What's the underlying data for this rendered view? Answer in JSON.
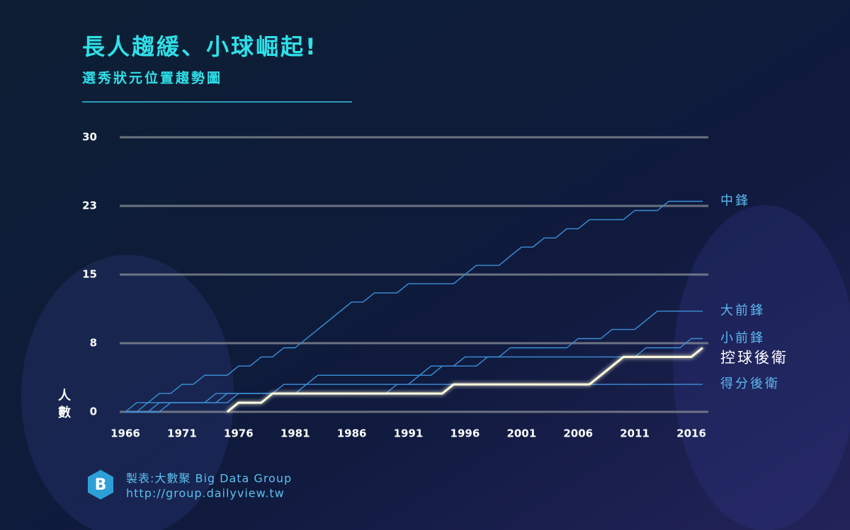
{
  "chart_data": {
    "type": "line",
    "title": "長人趨緩、小球崛起!",
    "subtitle": "選秀狀元位置趨勢圖",
    "y_label": [
      "人",
      "數"
    ],
    "x": [
      1966,
      1967,
      1968,
      1969,
      1970,
      1971,
      1972,
      1973,
      1974,
      1975,
      1976,
      1977,
      1978,
      1979,
      1980,
      1981,
      1982,
      1983,
      1984,
      1985,
      1986,
      1987,
      1988,
      1989,
      1990,
      1991,
      1992,
      1993,
      1994,
      1995,
      1996,
      1997,
      1998,
      1999,
      2000,
      2001,
      2002,
      2003,
      2004,
      2005,
      2006,
      2007,
      2008,
      2009,
      2010,
      2011,
      2012,
      2013,
      2014,
      2015,
      2016,
      2017
    ],
    "xlim": [
      1965.5,
      2017.5
    ],
    "xticks": [
      1966,
      1971,
      1976,
      1981,
      1986,
      1991,
      1996,
      2001,
      2006,
      2011,
      2016
    ],
    "ylim": [
      0,
      30
    ],
    "yticks": [
      0,
      {
        "value": 7.5,
        "label": "8"
      },
      15,
      {
        "value": 22.5,
        "label": "23"
      },
      30
    ],
    "grid": true,
    "series": [
      {
        "name": "中鋒",
        "color": "#3d8fd9",
        "values": [
          0,
          1,
          1,
          2,
          2,
          3,
          3,
          4,
          4,
          4,
          5,
          5,
          6,
          6,
          7,
          7,
          8,
          9,
          10,
          11,
          12,
          12,
          13,
          13,
          13,
          14,
          14,
          14,
          14,
          14,
          15,
          16,
          16,
          16,
          17,
          18,
          18,
          19,
          19,
          20,
          20,
          21,
          21,
          21,
          21,
          22,
          22,
          22,
          23,
          23,
          23,
          23
        ]
      },
      {
        "name": "大前鋒",
        "color": "#3d8fd9",
        "values": [
          0,
          0,
          0,
          1,
          1,
          1,
          1,
          1,
          1,
          2,
          2,
          2,
          2,
          2,
          2,
          2,
          3,
          4,
          4,
          4,
          4,
          4,
          4,
          4,
          4,
          4,
          4,
          5,
          5,
          5,
          6,
          6,
          6,
          6,
          7,
          7,
          7,
          7,
          7,
          7,
          8,
          8,
          8,
          9,
          9,
          9,
          10,
          11,
          11,
          11,
          11,
          11
        ]
      },
      {
        "name": "小前鋒",
        "color": "#3d8fd9",
        "values": [
          0,
          0,
          1,
          1,
          1,
          1,
          1,
          1,
          1,
          1,
          2,
          2,
          2,
          2,
          3,
          3,
          3,
          3,
          3,
          3,
          3,
          3,
          3,
          3,
          3,
          3,
          4,
          4,
          5,
          5,
          5,
          5,
          6,
          6,
          6,
          6,
          6,
          6,
          6,
          6,
          6,
          6,
          6,
          6,
          6,
          6,
          7,
          7,
          7,
          7,
          8,
          8
        ]
      },
      {
        "name": "控球後衛",
        "color": "#fffbe0",
        "highlight": true,
        "values": [
          null,
          null,
          null,
          null,
          null,
          null,
          null,
          null,
          null,
          0,
          1,
          1,
          1,
          2,
          2,
          2,
          2,
          2,
          2,
          2,
          2,
          2,
          2,
          2,
          2,
          2,
          2,
          2,
          2,
          3,
          3,
          3,
          3,
          3,
          3,
          3,
          3,
          3,
          3,
          3,
          3,
          3,
          4,
          5,
          6,
          6,
          6,
          6,
          6,
          6,
          6,
          7
        ]
      },
      {
        "name": "得分後衛",
        "color": "#3d8fd9",
        "values": [
          0,
          0,
          0,
          0,
          1,
          1,
          1,
          1,
          2,
          2,
          2,
          2,
          2,
          2,
          2,
          2,
          2,
          2,
          2,
          2,
          2,
          2,
          2,
          2,
          3,
          3,
          3,
          3,
          3,
          3,
          3,
          3,
          3,
          3,
          3,
          3,
          3,
          3,
          3,
          3,
          3,
          3,
          3,
          3,
          3,
          3,
          3,
          3,
          3,
          3,
          3,
          3
        ]
      }
    ],
    "credit": "製表:大數聚 Big Data Group",
    "url": "http://group.dailyview.tw"
  }
}
